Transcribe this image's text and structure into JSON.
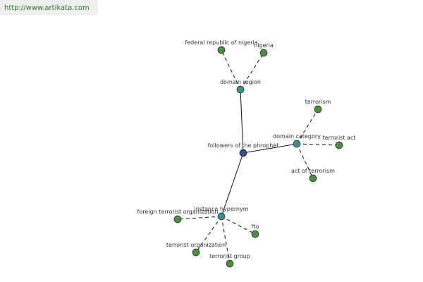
{
  "header": {
    "url": "http://www.artikata.com"
  },
  "nodes": [
    {
      "label": "followers of the phrophet"
    },
    {
      "label": "domain region"
    },
    {
      "label": "federal republic of nigeria"
    },
    {
      "label": "nigeria"
    },
    {
      "label": "domain category"
    },
    {
      "label": "terrorism"
    },
    {
      "label": "terrorist act"
    },
    {
      "label": "act of terrorism"
    },
    {
      "label": "instance hypernym"
    },
    {
      "label": "foreign terrorist organization"
    },
    {
      "label": "fto"
    },
    {
      "label": "terrorist organization"
    },
    {
      "label": "terrorist group"
    }
  ]
}
